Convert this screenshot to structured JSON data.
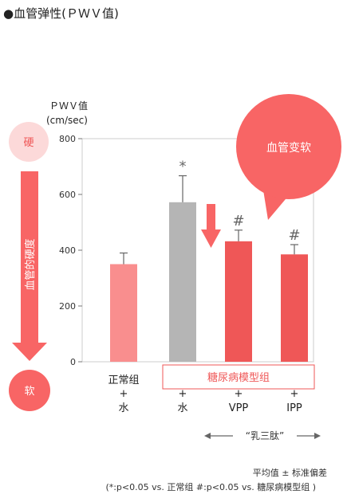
{
  "page_title": "●血管弹性(ＰＷＶ值)",
  "chart_data": {
    "type": "bar",
    "ylabel": "ＰＷＶ值",
    "yunit": "(cm/sec)",
    "ylim": [
      0,
      800
    ],
    "yticks": [
      "800",
      "600",
      "400",
      "200",
      "0"
    ],
    "grid": false,
    "bars": [
      {
        "value": 350,
        "error": 40,
        "color": "#f98e8e",
        "sig": ""
      },
      {
        "value": 572,
        "error": 95,
        "color": "#b5b5b5",
        "sig": "*"
      },
      {
        "value": 432,
        "error": 40,
        "color": "#ef5757",
        "sig": "#"
      },
      {
        "value": 385,
        "error": 35,
        "color": "#ef5757",
        "sig": "#"
      }
    ],
    "categories": [
      {
        "name": "正常组",
        "plus": "+",
        "sub": "水"
      },
      {
        "name": "",
        "plus": "+",
        "sub": "水"
      },
      {
        "name": "",
        "plus": "+",
        "sub": "VPP"
      },
      {
        "name": "",
        "plus": "+",
        "sub": "IPP"
      }
    ],
    "group_label": "糖尿病模型组"
  },
  "side": {
    "hard": "硬",
    "soft": "软",
    "arrow_label": "血管的硬度"
  },
  "bubble_label": "血管变软",
  "peptide_label": "“乳三肽”",
  "footnote": {
    "line1": "平均值 ± 标准偏差",
    "line2": "(*:p<0.05 vs. 正常组 #:p<0.05 vs. 糖尿病模型组 )"
  },
  "colors": {
    "accent": "#ef5757",
    "light_pink": "#fcd9d9",
    "bubble": "#f86565",
    "gray_bar": "#b5b5b5",
    "pink_bar": "#f98e8e"
  }
}
